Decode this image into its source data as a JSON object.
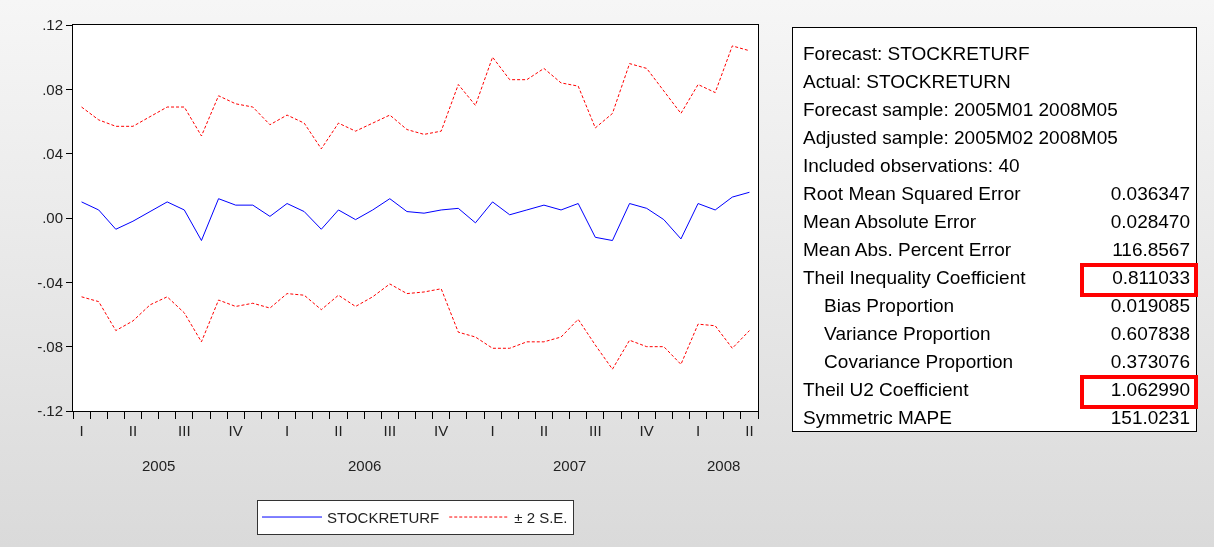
{
  "chart_data": [
    {
      "type": "line",
      "categories": [
        "I",
        null,
        null,
        "II",
        null,
        null,
        "III",
        null,
        null,
        "IV",
        null,
        null,
        "I",
        null,
        null,
        "II",
        null,
        null,
        "III",
        null,
        null,
        "IV",
        null,
        null,
        "I",
        null,
        null,
        "II",
        null,
        null,
        "III",
        null,
        null,
        "IV",
        null,
        null,
        "I",
        null,
        null,
        "II"
      ],
      "series": [
        {
          "name": "STOCKRETURF",
          "color": "#0000ff",
          "line_style": "solid",
          "values": [
            0.01,
            0.005,
            -0.007,
            -0.002,
            0.004,
            0.01,
            0.005,
            -0.014,
            0.012,
            0.008,
            0.008,
            0.001,
            0.009,
            0.004,
            -0.007,
            0.005,
            -0.001,
            0.005,
            0.012,
            0.004,
            0.003,
            0.005,
            0.006,
            -0.003,
            0.01,
            0.002,
            0.005,
            0.008,
            0.005,
            0.009,
            -0.012,
            -0.014,
            0.009,
            0.006,
            -0.001,
            -0.013,
            0.009,
            0.005,
            0.013,
            0.016
          ]
        },
        {
          "name": "± 2 S.E.",
          "color": "#ff0000",
          "line_style": "dashed",
          "values": [
            0.069,
            0.061,
            0.057,
            0.057,
            0.063,
            0.069,
            0.069,
            0.051,
            0.076,
            0.071,
            0.069,
            0.058,
            0.064,
            0.059,
            0.043,
            0.059,
            0.054,
            0.059,
            0.064,
            0.055,
            0.052,
            0.054,
            0.083,
            0.07,
            0.1,
            0.086,
            0.086,
            0.093,
            0.084,
            0.082,
            0.056,
            0.065,
            0.096,
            0.093,
            0.079,
            0.065,
            0.083,
            0.078,
            0.107,
            0.104
          ]
        },
        {
          "color": "#ff0000",
          "line_style": "dashed",
          "values": [
            -0.049,
            -0.052,
            -0.07,
            -0.064,
            -0.054,
            -0.049,
            -0.059,
            -0.077,
            -0.051,
            -0.055,
            -0.053,
            -0.056,
            -0.047,
            -0.048,
            -0.057,
            -0.048,
            -0.055,
            -0.049,
            -0.041,
            -0.047,
            -0.046,
            -0.044,
            -0.071,
            -0.074,
            -0.081,
            -0.081,
            -0.077,
            -0.077,
            -0.074,
            -0.063,
            -0.079,
            -0.094,
            -0.076,
            -0.08,
            -0.08,
            -0.091,
            -0.066,
            -0.067,
            -0.081,
            -0.07
          ]
        }
      ],
      "ylim": [
        -0.12,
        0.12
      ],
      "yticks": [
        {
          "value": -0.12,
          "label": "-.12"
        },
        {
          "value": -0.08,
          "label": "-.08"
        },
        {
          "value": -0.04,
          "label": "-.04"
        },
        {
          "value": 0,
          "label": ".00"
        },
        {
          "value": 0.04,
          "label": ".04"
        },
        {
          "value": 0.08,
          "label": ".08"
        },
        {
          "value": 0.12,
          "label": ".12"
        }
      ],
      "annotations": [
        "2005",
        "2006",
        "2007",
        "2008"
      ],
      "grid": false,
      "marker": "none",
      "legend": "bottom"
    },
    {
      "type": "other",
      "categories": [
        "Forecast: STOCKRETURF",
        "Actual: STOCKRETURN",
        "Forecast sample: 2005M01 2008M05",
        "Adjusted sample: 2005M02 2008M05",
        "Included observations: 40",
        "Root Mean Squared Error",
        "Mean Absolute Error",
        "Mean Abs. Percent Error",
        "Theil Inequality Coefficient",
        "    Bias Proportion",
        "    Variance Proportion",
        "    Covariance Proportion",
        "Theil U2 Coefficient",
        "Symmetric MAPE"
      ],
      "value_labels": [
        null,
        null,
        null,
        null,
        null,
        "0.036347",
        "0.028470",
        "116.8567",
        "0.811033",
        "0.019085",
        "0.607838",
        "0.373076",
        "1.062990",
        "151.0231"
      ],
      "colors": [
        null,
        null,
        null,
        null,
        null,
        null,
        null,
        null,
        "#ff0000",
        null,
        null,
        null,
        "#ff0000",
        null
      ]
    }
  ]
}
